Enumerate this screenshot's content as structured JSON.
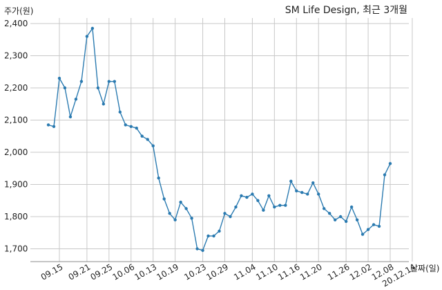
{
  "chart_data": {
    "type": "line",
    "title": "SM Life Design, 최근 3개월",
    "ylabel": "주가(원)",
    "xlabel": "날짜(일)",
    "ylim": [
      1650,
      2420
    ],
    "yticks": [
      1700,
      1800,
      1900,
      2000,
      2100,
      2200,
      2300,
      2400
    ],
    "ytick_labels": [
      "1,700",
      "1,800",
      "1,900",
      "2,000",
      "2,100",
      "2,200",
      "2,300",
      "2,400"
    ],
    "xtick_indices": [
      2,
      7,
      11,
      15,
      19,
      23,
      28,
      32,
      37,
      41,
      45,
      49,
      54,
      58
    ],
    "xtick_labels": [
      "09.15",
      "09.21",
      "09.25",
      "10.06",
      "10.13",
      "10.19",
      "10.23",
      "10.29",
      "11.04",
      "11.10",
      "11.16",
      "11.20",
      "11.26",
      "12.02"
    ],
    "xtick_indices_extra": [
      62,
      66
    ],
    "xtick_labels_extra": [
      "12.08",
      "20.12.14"
    ],
    "grid": true,
    "line_color": "#2a7ab0",
    "series": [
      {
        "values": [
          2085,
          2080,
          2230,
          2200,
          2110,
          2165,
          2220,
          2360,
          2385,
          2200,
          2150,
          2220,
          2220,
          2125,
          2085,
          2080,
          2075,
          2050,
          2040,
          2020,
          1920,
          1855,
          1810,
          1790,
          1845,
          1825,
          1795,
          1700,
          1695,
          1740,
          1740,
          1755,
          1810,
          1800,
          1830,
          1865,
          1860,
          1870,
          1850,
          1820,
          1865,
          1830,
          1835,
          1835,
          1910,
          1880,
          1875,
          1870,
          1905,
          1870,
          1825,
          1810,
          1790,
          1800,
          1785,
          1830,
          1790,
          1745,
          1760,
          1775,
          1770,
          1930,
          1965
        ]
      }
    ]
  }
}
